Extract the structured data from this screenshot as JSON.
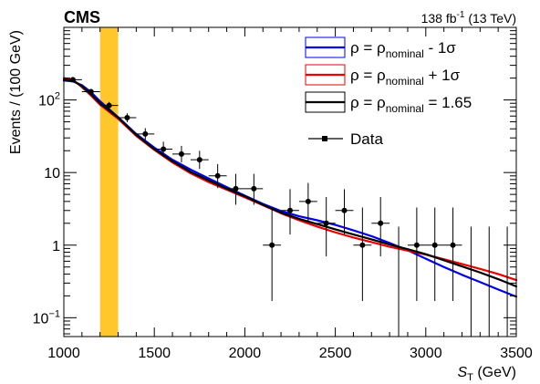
{
  "chart_data": {
    "type": "line",
    "experiment_label": "CMS",
    "lumi_label": "138 fb",
    "lumi_exponent": "-1",
    "energy_label": " (13 TeV)",
    "ylabel": "Events / (100 GeV)",
    "xlabel_symbol": "S",
    "xlabel_subscript": "T",
    "xlabel_unit": " (GeV)",
    "xlim": [
      1000,
      3500
    ],
    "ylim": [
      0.055,
      1000
    ],
    "y_scale": "log",
    "grid": false,
    "legend_position": "top-right",
    "x_ticks": [
      "1000",
      "1500",
      "2000",
      "2500",
      "3000",
      "3500"
    ],
    "y_ticks": [
      {
        "value": 0.1,
        "base": "10",
        "exp": "−1"
      },
      {
        "value": 1,
        "label": "1"
      },
      {
        "value": 10,
        "label": "10"
      },
      {
        "value": 100,
        "base": "10",
        "exp": "2"
      }
    ],
    "highlight_band": {
      "x": [
        1200,
        1300
      ],
      "color": "#ffc72c"
    },
    "legend": [
      {
        "pre": "ρ = ρ",
        "sub": "nominal",
        "post": " - 1σ",
        "color": "#0000ee",
        "text_color": "#0000ee"
      },
      {
        "pre": "ρ = ρ",
        "sub": "nominal",
        "post": " + 1σ",
        "color": "#ee0000",
        "text_color": "#ee0000"
      },
      {
        "pre": "ρ = ρ",
        "sub": "nominal",
        "post": " = 1.65",
        "color": "#000000",
        "text_color": "#000000"
      },
      {
        "pre": "Data",
        "sub": "",
        "post": "",
        "color": "#000000",
        "text_color": "#000000"
      }
    ],
    "series": [
      {
        "name": "ρ = ρnominal - 1σ",
        "color": "#0000ee",
        "x": [
          1000,
          1050,
          1100,
          1150,
          1200,
          1300,
          1400,
          1500,
          1600,
          1700,
          1800,
          1900,
          2000,
          2100,
          2200,
          2300,
          2400,
          2500,
          2600,
          2700,
          2800,
          2900,
          3000,
          3100,
          3200,
          3300,
          3400,
          3500
        ],
        "y": [
          185,
          180,
          160,
          128,
          96,
          58,
          34,
          22,
          15,
          11,
          8.3,
          6.3,
          4.8,
          3.7,
          2.95,
          2.5,
          2.2,
          1.9,
          1.6,
          1.33,
          1.07,
          0.85,
          0.65,
          0.5,
          0.39,
          0.31,
          0.245,
          0.195
        ]
      },
      {
        "name": "ρ = ρnominal + 1σ",
        "color": "#ee0000",
        "x": [
          1000,
          1050,
          1100,
          1150,
          1200,
          1300,
          1400,
          1500,
          1600,
          1700,
          1800,
          1900,
          2000,
          2100,
          2200,
          2300,
          2400,
          2500,
          2600,
          2700,
          2800,
          2900,
          3000,
          3100,
          3200,
          3300,
          3400,
          3500
        ],
        "y": [
          200,
          190,
          150,
          115,
          86,
          55,
          32,
          20.5,
          13.8,
          9.8,
          7.4,
          5.8,
          4.55,
          3.55,
          2.75,
          2.2,
          1.8,
          1.5,
          1.27,
          1.1,
          0.95,
          0.84,
          0.74,
          0.64,
          0.55,
          0.47,
          0.4,
          0.33
        ]
      },
      {
        "name": "ρ = ρnominal = 1.65",
        "color": "#000000",
        "x": [
          1000,
          1050,
          1100,
          1150,
          1200,
          1300,
          1400,
          1500,
          1600,
          1700,
          1800,
          1900,
          2000,
          2100,
          2200,
          2300,
          2400,
          2500,
          2600,
          2700,
          2800,
          2900,
          3000,
          3100,
          3200,
          3300,
          3400,
          3500
        ],
        "y": [
          190,
          185,
          155,
          120,
          90,
          57,
          33,
          21,
          14.3,
          10.2,
          7.8,
          6.0,
          4.7,
          3.6,
          2.8,
          2.3,
          1.95,
          1.65,
          1.4,
          1.2,
          1.02,
          0.88,
          0.75,
          0.62,
          0.51,
          0.42,
          0.34,
          0.27
        ]
      }
    ],
    "data_points": [
      {
        "x": 1050,
        "y": 190,
        "yerr_low": 14,
        "yerr_high": 15
      },
      {
        "x": 1150,
        "y": 130,
        "yerr_low": 11,
        "yerr_high": 12
      },
      {
        "x": 1250,
        "y": 84,
        "yerr_low": 9,
        "yerr_high": 10
      },
      {
        "x": 1350,
        "y": 57,
        "yerr_low": 7.5,
        "yerr_high": 8.5
      },
      {
        "x": 1450,
        "y": 34,
        "yerr_low": 5.8,
        "yerr_high": 6.9
      },
      {
        "x": 1550,
        "y": 21,
        "yerr_low": 4.5,
        "yerr_high": 5.6
      },
      {
        "x": 1650,
        "y": 18,
        "yerr_low": 4.2,
        "yerr_high": 5.3
      },
      {
        "x": 1750,
        "y": 15,
        "yerr_low": 3.8,
        "yerr_high": 4.9
      },
      {
        "x": 1850,
        "y": 9,
        "yerr_low": 2.9,
        "yerr_high": 4.1
      },
      {
        "x": 1950,
        "y": 6,
        "yerr_low": 2.4,
        "yerr_high": 3.6
      },
      {
        "x": 2050,
        "y": 6,
        "yerr_low": 2.4,
        "yerr_high": 3.6
      },
      {
        "x": 2150,
        "y": 1,
        "yerr_low": 0.83,
        "yerr_high": 2.3
      },
      {
        "x": 2250,
        "y": 3,
        "yerr_low": 1.6,
        "yerr_high": 2.9
      },
      {
        "x": 2350,
        "y": 4,
        "yerr_low": 1.9,
        "yerr_high": 3.2
      },
      {
        "x": 2450,
        "y": 2,
        "yerr_low": 1.3,
        "yerr_high": 2.6
      },
      {
        "x": 2550,
        "y": 3,
        "yerr_low": 1.6,
        "yerr_high": 2.9
      },
      {
        "x": 2650,
        "y": 1,
        "yerr_low": 0.83,
        "yerr_high": 2.3
      },
      {
        "x": 2750,
        "y": 2,
        "yerr_low": 1.3,
        "yerr_high": 2.6
      },
      {
        "x": 2950,
        "y": 1,
        "yerr_low": 0.83,
        "yerr_high": 2.3
      },
      {
        "x": 3050,
        "y": 1,
        "yerr_low": 0.83,
        "yerr_high": 2.3
      },
      {
        "x": 3150,
        "y": 1,
        "yerr_low": 0.83,
        "yerr_high": 2.3
      }
    ],
    "zero_bins_upper": [
      {
        "x": 2850,
        "y_high": 1.8
      },
      {
        "x": 3250,
        "y_high": 1.8
      },
      {
        "x": 3350,
        "y_high": 1.8
      },
      {
        "x": 3450,
        "y_high": 1.8
      }
    ],
    "bin_half_width": 50
  }
}
